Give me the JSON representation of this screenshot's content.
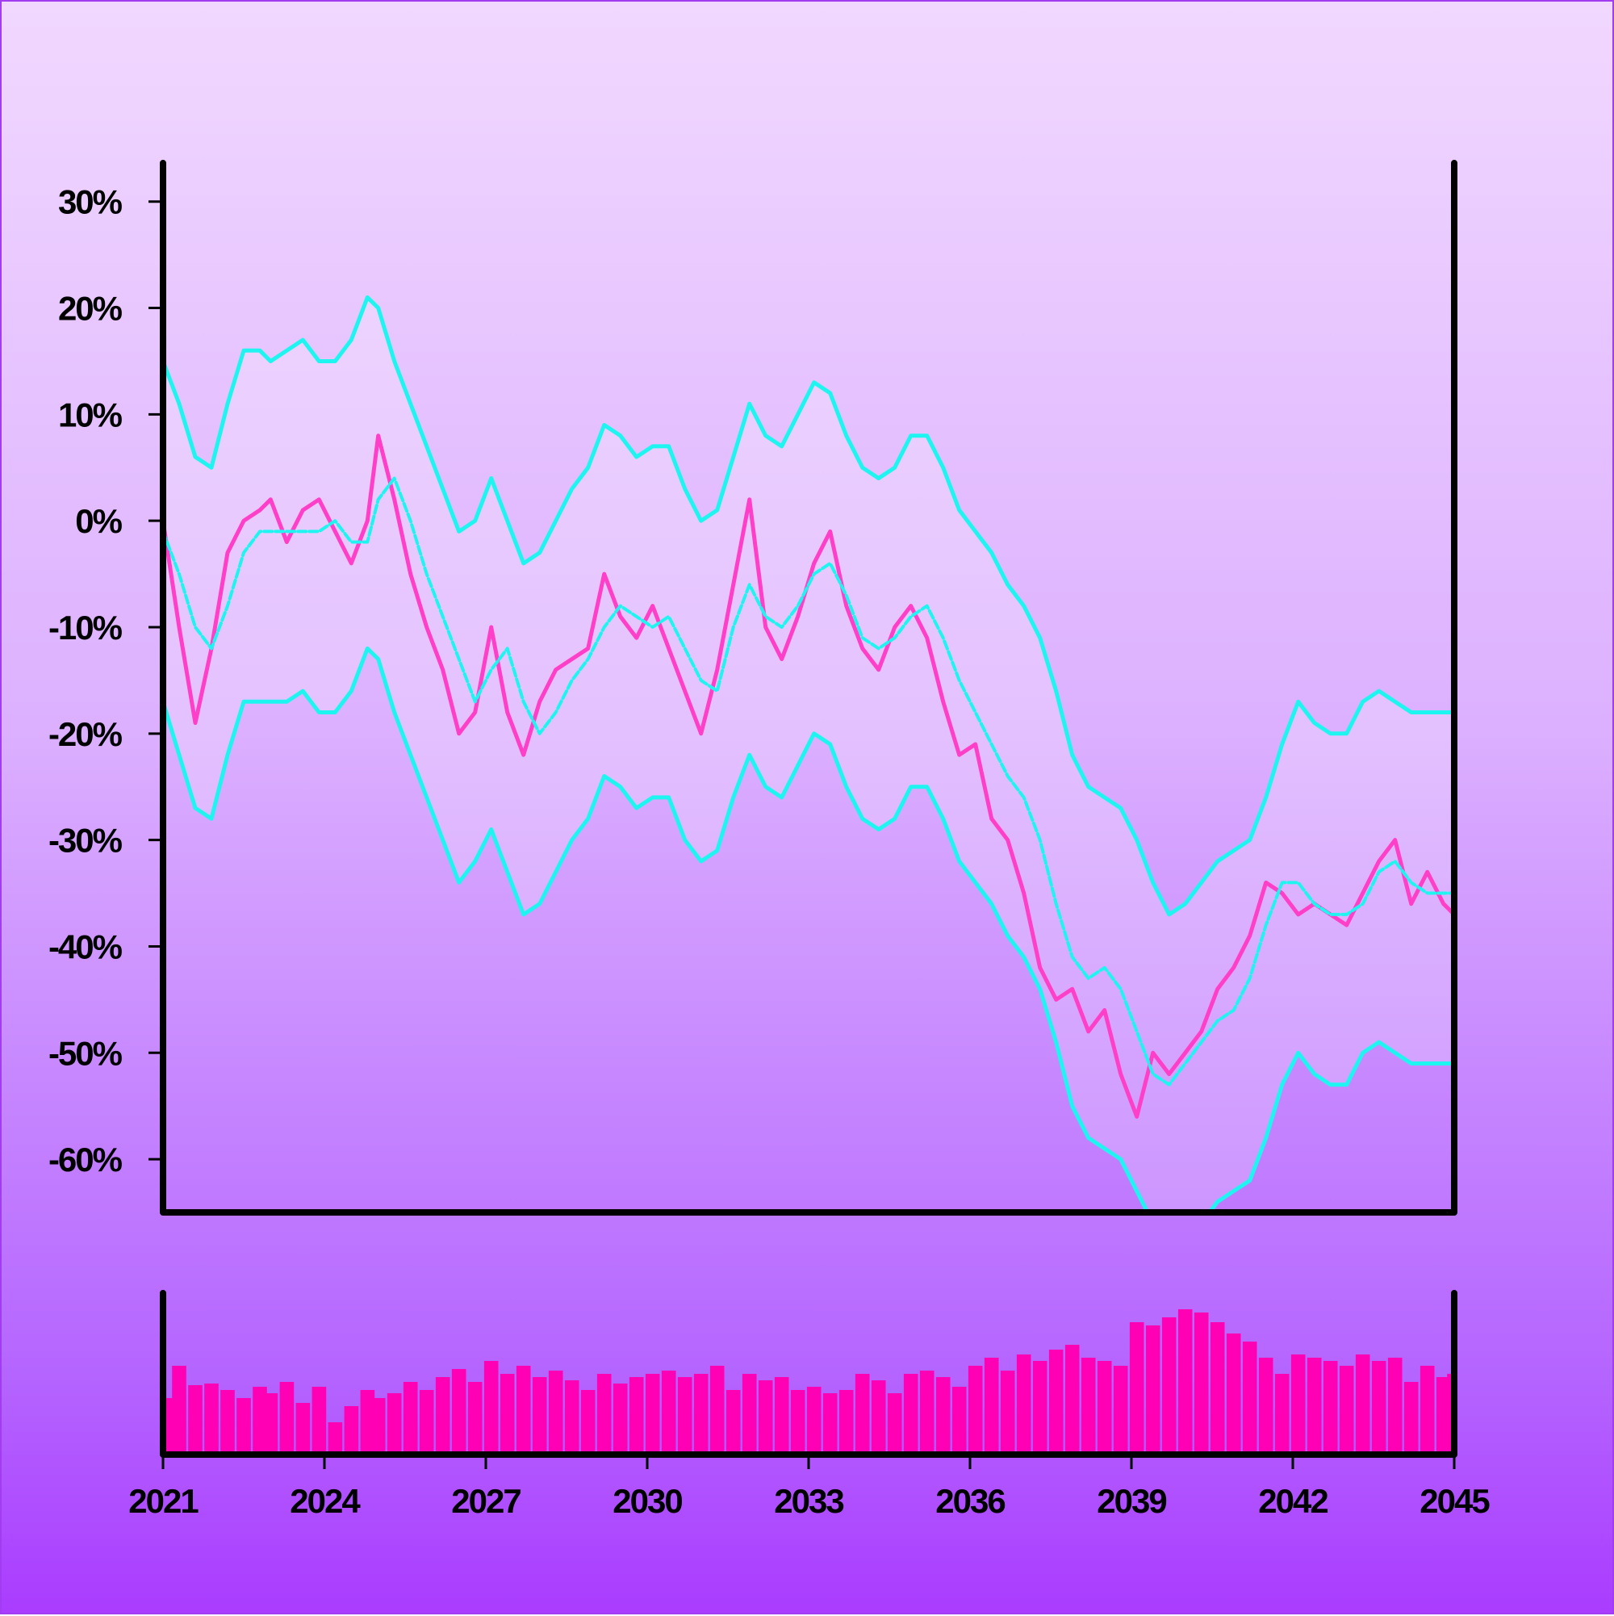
{
  "chart_data": [
    {
      "type": "line",
      "title": "",
      "xlabel": "",
      "ylabel": "",
      "x_range": [
        2021,
        2045
      ],
      "ylim": [
        -65,
        34
      ],
      "y_ticks": [
        30,
        20,
        10,
        0,
        -10,
        -20,
        -30,
        -40,
        -50,
        -60
      ],
      "y_tick_labels": [
        "30%",
        "20%",
        "10%",
        "0%",
        "-10%",
        "-20%",
        "-30%",
        "-40%",
        "-50%",
        "-60%"
      ],
      "grid": false,
      "legend": "none",
      "colors": {
        "price": "#ff3fc8",
        "band": "#1ff5f0",
        "volume": "#ff00b4",
        "axis": "#000000"
      },
      "series": [
        {
          "role": "price",
          "x": [
            2021.0,
            2021.3,
            2021.6,
            2021.9,
            2022.2,
            2022.5,
            2022.8,
            2023.0,
            2023.3,
            2023.6,
            2023.9,
            2024.2,
            2024.5,
            2024.8,
            2025.0,
            2025.3,
            2025.6,
            2025.9,
            2026.2,
            2026.5,
            2026.8,
            2027.1,
            2027.4,
            2027.7,
            2028.0,
            2028.3,
            2028.6,
            2028.9,
            2029.2,
            2029.5,
            2029.8,
            2030.1,
            2030.4,
            2030.7,
            2031.0,
            2031.3,
            2031.6,
            2031.9,
            2032.2,
            2032.5,
            2032.8,
            2033.1,
            2033.4,
            2033.7,
            2034.0,
            2034.3,
            2034.6,
            2034.9,
            2035.2,
            2035.5,
            2035.8,
            2036.1,
            2036.4,
            2036.7,
            2037.0,
            2037.3,
            2037.6,
            2037.9,
            2038.2,
            2038.5,
            2038.8,
            2039.1,
            2039.4,
            2039.7,
            2040.0,
            2040.3,
            2040.6,
            2040.9,
            2041.2,
            2041.5,
            2041.8,
            2042.1,
            2042.4,
            2042.7,
            2043.0,
            2043.3,
            2043.6,
            2043.9,
            2044.2,
            2044.5,
            2044.8,
            2045.0
          ],
          "y": [
            0,
            -10,
            -19,
            -12,
            -3,
            0,
            1,
            2,
            -2,
            1,
            2,
            -1,
            -4,
            0,
            8,
            2,
            -5,
            -10,
            -14,
            -20,
            -18,
            -10,
            -18,
            -22,
            -17,
            -14,
            -13,
            -12,
            -5,
            -9,
            -11,
            -8,
            -12,
            -16,
            -20,
            -14,
            -6,
            2,
            -10,
            -13,
            -9,
            -4,
            -1,
            -8,
            -12,
            -14,
            -10,
            -8,
            -11,
            -17,
            -22,
            -21,
            -28,
            -30,
            -35,
            -42,
            -45,
            -44,
            -48,
            -46,
            -52,
            -56,
            -50,
            -52,
            -50,
            -48,
            -44,
            -42,
            -39,
            -34,
            -35,
            -37,
            -36,
            -37,
            -38,
            -35,
            -32,
            -30,
            -36,
            -33,
            -36,
            -37
          ]
        },
        {
          "role": "moving-average",
          "x": [
            2021.0,
            2021.3,
            2021.6,
            2021.9,
            2022.2,
            2022.5,
            2022.8,
            2023.0,
            2023.3,
            2023.6,
            2023.9,
            2024.2,
            2024.5,
            2024.8,
            2025.0,
            2025.3,
            2025.6,
            2025.9,
            2026.2,
            2026.5,
            2026.8,
            2027.1,
            2027.4,
            2027.7,
            2028.0,
            2028.3,
            2028.6,
            2028.9,
            2029.2,
            2029.5,
            2029.8,
            2030.1,
            2030.4,
            2030.7,
            2031.0,
            2031.3,
            2031.6,
            2031.9,
            2032.2,
            2032.5,
            2032.8,
            2033.1,
            2033.4,
            2033.7,
            2034.0,
            2034.3,
            2034.6,
            2034.9,
            2035.2,
            2035.5,
            2035.8,
            2036.1,
            2036.4,
            2036.7,
            2037.0,
            2037.3,
            2037.6,
            2037.9,
            2038.2,
            2038.5,
            2038.8,
            2039.1,
            2039.4,
            2039.7,
            2040.0,
            2040.3,
            2040.6,
            2040.9,
            2041.2,
            2041.5,
            2041.8,
            2042.1,
            2042.4,
            2042.7,
            2043.0,
            2043.3,
            2043.6,
            2043.9,
            2044.2,
            2044.5,
            2044.8,
            2045.0
          ],
          "y": [
            -1,
            -5,
            -10,
            -12,
            -8,
            -3,
            -1,
            -1,
            -1,
            -1,
            -1,
            0,
            -2,
            -2,
            2,
            4,
            0,
            -5,
            -9,
            -13,
            -17,
            -14,
            -12,
            -17,
            -20,
            -18,
            -15,
            -13,
            -10,
            -8,
            -9,
            -10,
            -9,
            -12,
            -15,
            -16,
            -10,
            -6,
            -9,
            -10,
            -8,
            -5,
            -4,
            -7,
            -11,
            -12,
            -11,
            -9,
            -8,
            -11,
            -15,
            -18,
            -21,
            -24,
            -26,
            -30,
            -36,
            -41,
            -43,
            -42,
            -44,
            -48,
            -52,
            -53,
            -51,
            -49,
            -47,
            -46,
            -43,
            -38,
            -34,
            -34,
            -36,
            -37,
            -37,
            -36,
            -33,
            -32,
            -34,
            -35,
            -35,
            -35
          ]
        },
        {
          "role": "upper-band",
          "x": [
            2021.0,
            2021.3,
            2021.6,
            2021.9,
            2022.2,
            2022.5,
            2022.8,
            2023.0,
            2023.3,
            2023.6,
            2023.9,
            2024.2,
            2024.5,
            2024.8,
            2025.0,
            2025.3,
            2025.6,
            2025.9,
            2026.2,
            2026.5,
            2026.8,
            2027.1,
            2027.4,
            2027.7,
            2028.0,
            2028.3,
            2028.6,
            2028.9,
            2029.2,
            2029.5,
            2029.8,
            2030.1,
            2030.4,
            2030.7,
            2031.0,
            2031.3,
            2031.6,
            2031.9,
            2032.2,
            2032.5,
            2032.8,
            2033.1,
            2033.4,
            2033.7,
            2034.0,
            2034.3,
            2034.6,
            2034.9,
            2035.2,
            2035.5,
            2035.8,
            2036.1,
            2036.4,
            2036.7,
            2037.0,
            2037.3,
            2037.6,
            2037.9,
            2038.2,
            2038.5,
            2038.8,
            2039.1,
            2039.4,
            2039.7,
            2040.0,
            2040.3,
            2040.6,
            2040.9,
            2041.2,
            2041.5,
            2041.8,
            2042.1,
            2042.4,
            2042.7,
            2043.0,
            2043.3,
            2043.6,
            2043.9,
            2044.2,
            2044.5,
            2044.8,
            2045.0
          ],
          "y": [
            15,
            11,
            6,
            5,
            11,
            16,
            16,
            15,
            16,
            17,
            15,
            15,
            17,
            21,
            20,
            15,
            11,
            7,
            3,
            -1,
            0,
            4,
            0,
            -4,
            -3,
            0,
            3,
            5,
            9,
            8,
            6,
            7,
            7,
            3,
            0,
            1,
            6,
            11,
            8,
            7,
            10,
            13,
            12,
            8,
            5,
            4,
            5,
            8,
            8,
            5,
            1,
            -1,
            -3,
            -6,
            -8,
            -11,
            -16,
            -22,
            -25,
            -26,
            -27,
            -30,
            -34,
            -37,
            -36,
            -34,
            -32,
            -31,
            -30,
            -26,
            -21,
            -17,
            -19,
            -20,
            -20,
            -17,
            -16,
            -17,
            -18,
            -18,
            -18,
            -18
          ]
        },
        {
          "role": "lower-band",
          "x": [
            2021.0,
            2021.3,
            2021.6,
            2021.9,
            2022.2,
            2022.5,
            2022.8,
            2023.0,
            2023.3,
            2023.6,
            2023.9,
            2024.2,
            2024.5,
            2024.8,
            2025.0,
            2025.3,
            2025.6,
            2025.9,
            2026.2,
            2026.5,
            2026.8,
            2027.1,
            2027.4,
            2027.7,
            2028.0,
            2028.3,
            2028.6,
            2028.9,
            2029.2,
            2029.5,
            2029.8,
            2030.1,
            2030.4,
            2030.7,
            2031.0,
            2031.3,
            2031.6,
            2031.9,
            2032.2,
            2032.5,
            2032.8,
            2033.1,
            2033.4,
            2033.7,
            2034.0,
            2034.3,
            2034.6,
            2034.9,
            2035.2,
            2035.5,
            2035.8,
            2036.1,
            2036.4,
            2036.7,
            2037.0,
            2037.3,
            2037.6,
            2037.9,
            2038.2,
            2038.5,
            2038.8,
            2039.1,
            2039.4,
            2039.7,
            2040.0,
            2040.3,
            2040.6,
            2040.9,
            2041.2,
            2041.5,
            2041.8,
            2042.1,
            2042.4,
            2042.7,
            2043.0,
            2043.3,
            2043.6,
            2043.9,
            2044.2,
            2044.5,
            2044.8,
            2045.0
          ],
          "y": [
            -17,
            -22,
            -27,
            -28,
            -22,
            -17,
            -17,
            -17,
            -17,
            -16,
            -18,
            -18,
            -16,
            -12,
            -13,
            -18,
            -22,
            -26,
            -30,
            -34,
            -32,
            -29,
            -33,
            -37,
            -36,
            -33,
            -30,
            -28,
            -24,
            -25,
            -27,
            -26,
            -26,
            -30,
            -32,
            -31,
            -26,
            -22,
            -25,
            -26,
            -23,
            -20,
            -21,
            -25,
            -28,
            -29,
            -28,
            -25,
            -25,
            -28,
            -32,
            -34,
            -36,
            -39,
            -41,
            -44,
            -49,
            -55,
            -58,
            -59,
            -60,
            -63,
            -66,
            -69,
            -68,
            -66,
            -64,
            -63,
            -62,
            -58,
            -53,
            -50,
            -52,
            -53,
            -53,
            -50,
            -49,
            -50,
            -51,
            -51,
            -51,
            -51
          ]
        }
      ]
    },
    {
      "type": "bar",
      "role": "volume",
      "title": "",
      "x_range": [
        2021,
        2045
      ],
      "ylim": [
        0,
        100
      ],
      "x_ticks": [
        2021,
        2024,
        2027,
        2030,
        2033,
        2036,
        2039,
        2042,
        2045
      ],
      "x_tick_labels": [
        "2021",
        "2024",
        "2027",
        "2030",
        "2033",
        "2036",
        "2039",
        "2042",
        "2045"
      ],
      "x": [
        2021.0,
        2021.3,
        2021.6,
        2021.9,
        2022.2,
        2022.5,
        2022.8,
        2023.0,
        2023.3,
        2023.6,
        2023.9,
        2024.2,
        2024.5,
        2024.8,
        2025.0,
        2025.3,
        2025.6,
        2025.9,
        2026.2,
        2026.5,
        2026.8,
        2027.1,
        2027.4,
        2027.7,
        2028.0,
        2028.3,
        2028.6,
        2028.9,
        2029.2,
        2029.5,
        2029.8,
        2030.1,
        2030.4,
        2030.7,
        2031.0,
        2031.3,
        2031.6,
        2031.9,
        2032.2,
        2032.5,
        2032.8,
        2033.1,
        2033.4,
        2033.7,
        2034.0,
        2034.3,
        2034.6,
        2034.9,
        2035.2,
        2035.5,
        2035.8,
        2036.1,
        2036.4,
        2036.7,
        2037.0,
        2037.3,
        2037.6,
        2037.9,
        2038.2,
        2038.5,
        2038.8,
        2039.1,
        2039.4,
        2039.7,
        2040.0,
        2040.3,
        2040.6,
        2040.9,
        2041.2,
        2041.5,
        2041.8,
        2042.1,
        2042.4,
        2042.7,
        2043.0,
        2043.3,
        2043.6,
        2043.9,
        2044.2,
        2044.5,
        2044.8,
        2045.0
      ],
      "values": [
        35,
        55,
        43,
        44,
        40,
        35,
        42,
        38,
        45,
        32,
        42,
        20,
        30,
        40,
        35,
        38,
        45,
        40,
        48,
        53,
        45,
        58,
        50,
        55,
        48,
        52,
        46,
        40,
        50,
        44,
        48,
        50,
        52,
        48,
        50,
        55,
        40,
        50,
        46,
        48,
        40,
        42,
        38,
        40,
        50,
        46,
        38,
        50,
        52,
        48,
        42,
        55,
        60,
        52,
        62,
        58,
        65,
        68,
        60,
        58,
        55,
        82,
        80,
        85,
        90,
        88,
        82,
        75,
        70,
        60,
        50,
        62,
        60,
        58,
        55,
        62,
        58,
        60,
        45,
        55,
        48,
        50
      ]
    }
  ]
}
